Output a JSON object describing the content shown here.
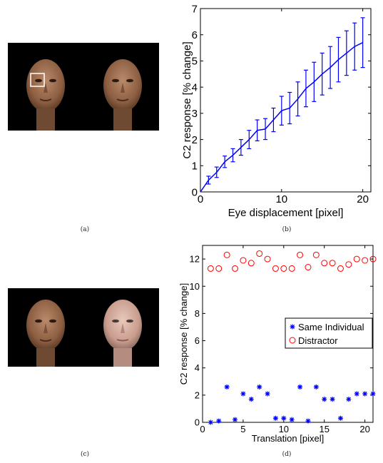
{
  "captions": {
    "a": "(a)",
    "b": "(b)",
    "c": "(c)",
    "d": "(d)"
  },
  "images": {
    "a": {
      "faces": [
        "face-left-with-eye-box",
        "face-right"
      ],
      "eye_box_color": "#ffffff"
    },
    "c": {
      "faces": [
        "face-left",
        "face-right-distractor"
      ]
    }
  },
  "chart_data": [
    {
      "type": "line",
      "id": "b",
      "title": "",
      "xlabel": "Eye displacement [pixel]",
      "ylabel": "C2 response [% change]",
      "xlim": [
        0,
        21
      ],
      "ylim": [
        0,
        7
      ],
      "xticks": [
        0,
        10,
        20
      ],
      "yticks": [
        0,
        1,
        2,
        3,
        4,
        5,
        6,
        7
      ],
      "grid": false,
      "series": [
        {
          "color": "#0000ff",
          "x": [
            0,
            1,
            2,
            3,
            4,
            5,
            6,
            7,
            8,
            9,
            10,
            11,
            12,
            13,
            14,
            15,
            16,
            17,
            18,
            19,
            20
          ],
          "y": [
            0,
            0.45,
            0.75,
            1.15,
            1.4,
            1.7,
            2.0,
            2.35,
            2.4,
            2.75,
            3.1,
            3.2,
            3.55,
            3.95,
            4.2,
            4.5,
            4.75,
            5.05,
            5.3,
            5.55,
            5.7
          ],
          "err": [
            0,
            0.15,
            0.2,
            0.22,
            0.25,
            0.3,
            0.35,
            0.4,
            0.4,
            0.45,
            0.55,
            0.6,
            0.65,
            0.7,
            0.75,
            0.8,
            0.8,
            0.85,
            0.85,
            0.9,
            0.95
          ]
        }
      ]
    },
    {
      "type": "scatter",
      "id": "d",
      "title": "",
      "xlabel": "Translation [pixel]",
      "ylabel": "C2 response [% change]",
      "xlim": [
        0,
        21
      ],
      "ylim": [
        0,
        13
      ],
      "xticks": [
        0,
        5,
        10,
        15,
        20
      ],
      "yticks": [
        0,
        2,
        4,
        6,
        8,
        10,
        12
      ],
      "grid": false,
      "legend_position": "middle-right",
      "series": [
        {
          "name": "Same Individual",
          "marker": "asterisk",
          "color": "#0000ff",
          "x": [
            1,
            2,
            3,
            4,
            5,
            6,
            7,
            8,
            9,
            10,
            11,
            12,
            13,
            14,
            15,
            16,
            17,
            18,
            19,
            20,
            21
          ],
          "y": [
            0.0,
            0.1,
            2.6,
            0.2,
            2.1,
            1.7,
            2.6,
            2.1,
            0.3,
            0.3,
            0.2,
            2.6,
            0.1,
            2.6,
            1.7,
            1.7,
            0.3,
            1.7,
            2.1,
            2.1,
            2.1
          ]
        },
        {
          "name": "Distractor",
          "marker": "circle",
          "color": "#ff0000",
          "x": [
            1,
            2,
            3,
            4,
            5,
            6,
            7,
            8,
            9,
            10,
            11,
            12,
            13,
            14,
            15,
            16,
            17,
            18,
            19,
            20,
            21
          ],
          "y": [
            11.3,
            11.3,
            12.3,
            11.3,
            11.9,
            11.7,
            12.4,
            12.0,
            11.3,
            11.3,
            11.3,
            12.3,
            11.4,
            12.3,
            11.7,
            11.7,
            11.3,
            11.6,
            12.0,
            11.9,
            12.0
          ]
        }
      ]
    }
  ]
}
